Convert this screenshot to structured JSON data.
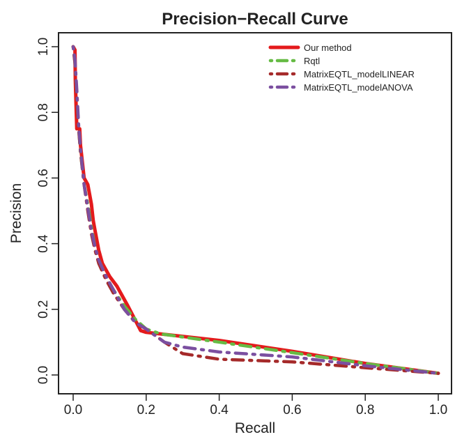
{
  "chart_data": {
    "type": "line",
    "title": "Precision−Recall Curve",
    "xlabel": "Recall",
    "ylabel": "Precision",
    "xlim": [
      0,
      1
    ],
    "ylim": [
      0,
      1
    ],
    "xticks": [
      "0.0",
      "0.2",
      "0.4",
      "0.6",
      "0.8",
      "1.0"
    ],
    "yticks": [
      "0.0",
      "0.2",
      "0.4",
      "0.6",
      "0.8",
      "1.0"
    ],
    "xtick_values": [
      0,
      0.2,
      0.4,
      0.6,
      0.8,
      1.0
    ],
    "ytick_values": [
      0,
      0.2,
      0.4,
      0.6,
      0.8,
      1.0
    ],
    "grid": false,
    "legend_position": "top-right",
    "series": [
      {
        "name": "Our method",
        "color": "#e41a1c",
        "line_style": "solid",
        "points": [
          [
            0.0,
            1.0
          ],
          [
            0.005,
            0.99
          ],
          [
            0.006,
            0.9
          ],
          [
            0.008,
            0.82
          ],
          [
            0.01,
            0.75
          ],
          [
            0.018,
            0.75
          ],
          [
            0.02,
            0.7
          ],
          [
            0.025,
            0.65
          ],
          [
            0.03,
            0.6
          ],
          [
            0.04,
            0.58
          ],
          [
            0.05,
            0.52
          ],
          [
            0.055,
            0.47
          ],
          [
            0.06,
            0.44
          ],
          [
            0.07,
            0.38
          ],
          [
            0.08,
            0.34
          ],
          [
            0.1,
            0.3
          ],
          [
            0.12,
            0.27
          ],
          [
            0.15,
            0.21
          ],
          [
            0.185,
            0.135
          ],
          [
            0.2,
            0.13
          ],
          [
            0.4,
            0.105
          ],
          [
            0.6,
            0.072
          ],
          [
            0.8,
            0.035
          ],
          [
            1.0,
            0.005
          ]
        ]
      },
      {
        "name": "Rqtl",
        "color": "#66bb44",
        "line_style": "dashdot",
        "points": [
          [
            0.0,
            1.0
          ],
          [
            0.005,
            0.95
          ],
          [
            0.01,
            0.85
          ],
          [
            0.015,
            0.75
          ],
          [
            0.02,
            0.68
          ],
          [
            0.03,
            0.58
          ],
          [
            0.04,
            0.52
          ],
          [
            0.05,
            0.45
          ],
          [
            0.06,
            0.39
          ],
          [
            0.07,
            0.35
          ],
          [
            0.09,
            0.3
          ],
          [
            0.11,
            0.26
          ],
          [
            0.14,
            0.21
          ],
          [
            0.17,
            0.17
          ],
          [
            0.2,
            0.14
          ],
          [
            0.24,
            0.125
          ],
          [
            0.4,
            0.1
          ],
          [
            0.6,
            0.068
          ],
          [
            0.8,
            0.035
          ],
          [
            1.0,
            0.005
          ]
        ]
      },
      {
        "name": "MatrixEQTL_modelLINEAR",
        "color": "#a52a2a",
        "line_style": "dashdot",
        "points": [
          [
            0.0,
            1.0
          ],
          [
            0.005,
            0.95
          ],
          [
            0.01,
            0.85
          ],
          [
            0.015,
            0.75
          ],
          [
            0.02,
            0.68
          ],
          [
            0.03,
            0.58
          ],
          [
            0.04,
            0.5
          ],
          [
            0.05,
            0.43
          ],
          [
            0.06,
            0.38
          ],
          [
            0.07,
            0.34
          ],
          [
            0.09,
            0.29
          ],
          [
            0.11,
            0.25
          ],
          [
            0.14,
            0.2
          ],
          [
            0.17,
            0.16
          ],
          [
            0.2,
            0.14
          ],
          [
            0.25,
            0.1
          ],
          [
            0.3,
            0.065
          ],
          [
            0.4,
            0.048
          ],
          [
            0.6,
            0.04
          ],
          [
            0.8,
            0.022
          ],
          [
            1.0,
            0.005
          ]
        ]
      },
      {
        "name": "MatrixEQTL_modelANOVA",
        "color": "#7b4fa0",
        "line_style": "dashdot",
        "points": [
          [
            0.0,
            1.0
          ],
          [
            0.005,
            0.96
          ],
          [
            0.01,
            0.87
          ],
          [
            0.015,
            0.76
          ],
          [
            0.02,
            0.69
          ],
          [
            0.03,
            0.58
          ],
          [
            0.04,
            0.51
          ],
          [
            0.05,
            0.44
          ],
          [
            0.06,
            0.39
          ],
          [
            0.07,
            0.35
          ],
          [
            0.09,
            0.3
          ],
          [
            0.11,
            0.26
          ],
          [
            0.14,
            0.2
          ],
          [
            0.17,
            0.16
          ],
          [
            0.2,
            0.14
          ],
          [
            0.25,
            0.1
          ],
          [
            0.3,
            0.085
          ],
          [
            0.4,
            0.07
          ],
          [
            0.6,
            0.055
          ],
          [
            0.8,
            0.028
          ],
          [
            1.0,
            0.005
          ]
        ]
      }
    ]
  }
}
